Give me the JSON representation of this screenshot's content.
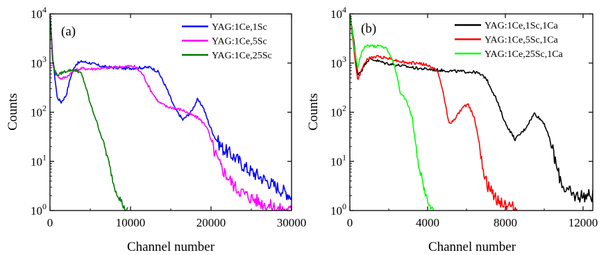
{
  "chart_data": [
    {
      "type": "line",
      "panel_label": "(a)",
      "xlabel": "Channel number",
      "ylabel": "Counts",
      "xlim": [
        0,
        30000
      ],
      "ylim": [
        1,
        10000
      ],
      "yscale": "log",
      "x_ticks": [
        0,
        10000,
        20000,
        30000
      ],
      "x_tick_labels": [
        "0",
        "10000",
        "20000",
        "30000"
      ],
      "y_tick_labels": [
        {
          "base": "10",
          "exp": "0"
        },
        {
          "base": "10",
          "exp": "1"
        },
        {
          "base": "10",
          "exp": "2"
        },
        {
          "base": "10",
          "exp": "3"
        },
        {
          "base": "10",
          "exp": "4"
        }
      ],
      "legend_position": "top-right",
      "series": [
        {
          "name": "YAG:1Ce,1Sc",
          "color": "#0000ff",
          "noisy_tail": true,
          "x": [
            0,
            400,
            900,
            1400,
            2000,
            2600,
            3200,
            4000,
            5000,
            6500,
            8000,
            9500,
            11000,
            12500,
            13500,
            14500,
            15500,
            16500,
            17500,
            18300,
            19000,
            19800,
            20500,
            21500,
            23000,
            24500,
            26000,
            27500,
            29000,
            30000
          ],
          "y": [
            10000,
            1000,
            200,
            160,
            220,
            550,
            950,
            1080,
            1000,
            850,
            800,
            780,
            800,
            820,
            650,
            300,
            120,
            70,
            100,
            180,
            130,
            55,
            30,
            18,
            12,
            7,
            5,
            3.5,
            2.5,
            2
          ]
        },
        {
          "name": "YAG:1Ce,5Sc",
          "color": "#ff00ff",
          "noisy_tail": true,
          "x": [
            0,
            400,
            900,
            1400,
            2000,
            3000,
            4000,
            5000,
            6500,
            8000,
            9500,
            10500,
            11500,
            12500,
            13500,
            14500,
            15500,
            16500,
            17500,
            18500,
            19500,
            20300,
            21000,
            22000,
            23000,
            24500,
            26000,
            27500,
            29000,
            30000
          ],
          "y": [
            10000,
            900,
            550,
            480,
            520,
            700,
            780,
            760,
            780,
            820,
            860,
            850,
            600,
            280,
            160,
            130,
            120,
            110,
            90,
            75,
            50,
            18,
            9,
            5,
            3,
            2,
            1.5,
            1.2,
            1,
            1
          ]
        },
        {
          "name": "YAG:1Ce,25Sc",
          "color": "#007a00",
          "noisy_tail": false,
          "x": [
            0,
            300,
            700,
            1100,
            1600,
            2200,
            2800,
            3400,
            3900,
            4400,
            5000,
            5600,
            6200,
            6800,
            7400,
            8000,
            8500,
            8900,
            9300,
            9700
          ],
          "y": [
            10000,
            1200,
            600,
            580,
            650,
            700,
            720,
            700,
            600,
            350,
            150,
            80,
            40,
            20,
            8,
            3,
            2,
            1.5,
            1,
            1
          ]
        }
      ]
    },
    {
      "type": "line",
      "panel_label": "(b)",
      "xlabel": "Channel number",
      "ylabel": "Counts",
      "xlim": [
        0,
        12500
      ],
      "ylim": [
        1,
        10000
      ],
      "yscale": "log",
      "x_ticks": [
        0,
        4000,
        8000,
        12000
      ],
      "x_tick_labels": [
        "0",
        "4000",
        "8000",
        "12000"
      ],
      "y_tick_labels": [
        {
          "base": "10",
          "exp": "0"
        },
        {
          "base": "10",
          "exp": "1"
        },
        {
          "base": "10",
          "exp": "2"
        },
        {
          "base": "10",
          "exp": "3"
        },
        {
          "base": "10",
          "exp": "4"
        }
      ],
      "legend_position": "top-right",
      "series": [
        {
          "name": "YAG:1Ce,1Sc,1Ca",
          "color": "#000000",
          "noisy_tail": true,
          "x": [
            0,
            200,
            400,
            600,
            800,
            1000,
            1300,
            1800,
            2500,
            3500,
            4500,
            5500,
            6500,
            7000,
            7500,
            8000,
            8500,
            9000,
            9500,
            10000,
            10400,
            10700,
            11000,
            11500,
            12000,
            12500
          ],
          "y": [
            10000,
            3000,
            600,
            700,
            1000,
            1200,
            1150,
            1000,
            900,
            780,
            720,
            680,
            650,
            500,
            200,
            60,
            28,
            45,
            95,
            60,
            20,
            6,
            3,
            2,
            2,
            2
          ]
        },
        {
          "name": "YAG:1Ce,5Sc,1Ca",
          "color": "#ff0000",
          "noisy_tail": true,
          "x": [
            0,
            200,
            400,
            600,
            800,
            1100,
            1500,
            2000,
            2500,
            3000,
            3500,
            4000,
            4500,
            4800,
            5100,
            5400,
            5800,
            6100,
            6400,
            6700,
            6900,
            7100,
            7400,
            7800,
            8200,
            8600
          ],
          "y": [
            10000,
            2000,
            450,
            700,
            1100,
            1300,
            1350,
            1250,
            1100,
            1000,
            1000,
            900,
            700,
            250,
            60,
            70,
            130,
            140,
            80,
            20,
            6,
            3,
            2,
            1.5,
            1.2,
            1
          ]
        },
        {
          "name": "YAG:1Ce,25Sc,1Ca",
          "color": "#00ff00",
          "noisy_tail": false,
          "x": [
            0,
            200,
            400,
            600,
            800,
            1100,
            1500,
            1900,
            2300,
            2600,
            2900,
            3200,
            3500,
            3800,
            4000,
            4200,
            4300
          ],
          "y": [
            10000,
            2500,
            800,
            1600,
            2300,
            2200,
            2200,
            2000,
            900,
            250,
            180,
            80,
            10,
            3,
            1.5,
            1,
            1
          ]
        }
      ]
    }
  ]
}
